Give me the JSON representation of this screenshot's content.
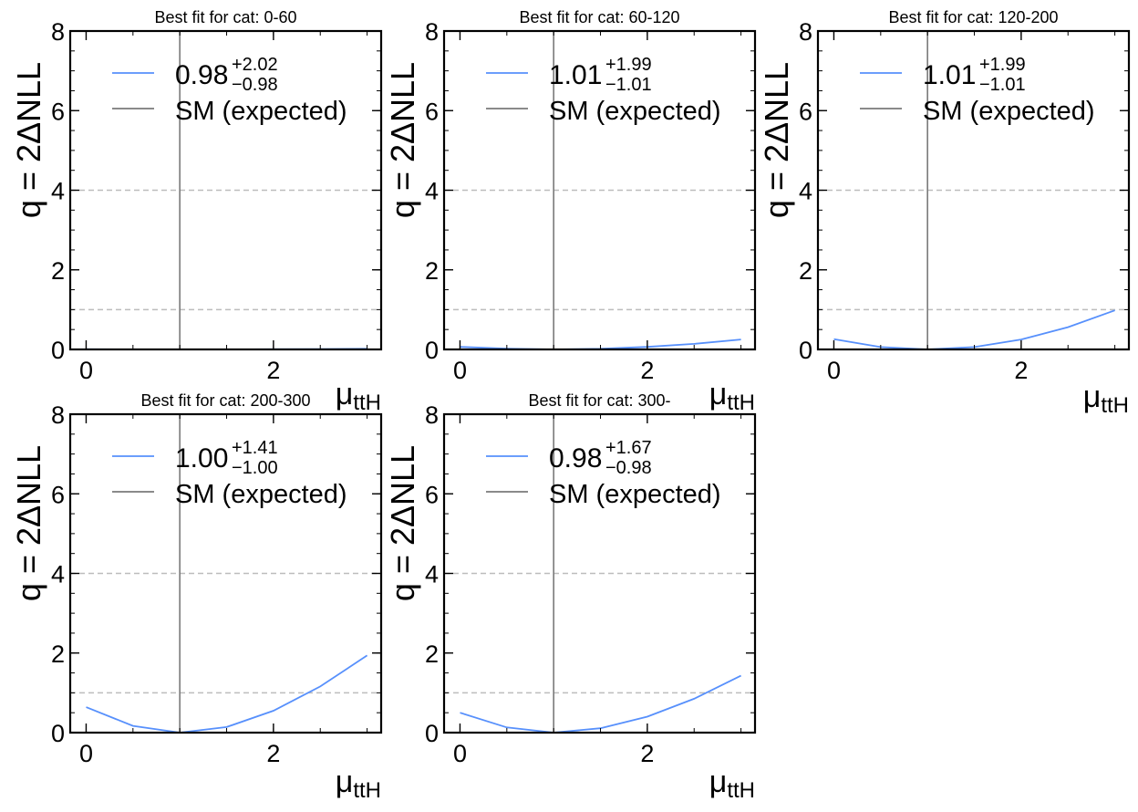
{
  "figure": {
    "ylabel": "q = 2ΔNLL",
    "xlabel_main": "μ",
    "xlabel_sub": "ttH",
    "ref_label": "SM (expected)",
    "colors": {
      "curve": "#5790fc",
      "sm_line": "#7a7a7a",
      "threshold": "#bdbdbd",
      "axes": "#000000"
    }
  },
  "chart_data": [
    {
      "type": "line",
      "title": "Best fit for cat: 0-60",
      "xlim": [
        -0.17,
        3.15
      ],
      "ylim": [
        0,
        8
      ],
      "xticks": [
        0,
        2
      ],
      "yticks": [
        0,
        2,
        4,
        6,
        8
      ],
      "thresholds": [
        1,
        4
      ],
      "sm_value": 1,
      "fit": {
        "central": "0.98",
        "up": "+2.02",
        "down": "−0.98"
      },
      "series": [
        {
          "x": [
            0,
            0.5,
            1,
            1.5,
            2,
            2.5,
            3
          ],
          "y": [
            0.005,
            0.001,
            0,
            0.001,
            0.005,
            0.01,
            0.017
          ]
        }
      ]
    },
    {
      "type": "line",
      "title": "Best fit for cat: 60-120",
      "xlim": [
        -0.17,
        3.15
      ],
      "ylim": [
        0,
        8
      ],
      "xticks": [
        0,
        2
      ],
      "yticks": [
        0,
        2,
        4,
        6,
        8
      ],
      "thresholds": [
        1,
        4
      ],
      "sm_value": 1,
      "fit": {
        "central": "1.01",
        "up": "+1.99",
        "down": "−1.01"
      },
      "series": [
        {
          "x": [
            0,
            0.5,
            1,
            1.5,
            2,
            2.5,
            3
          ],
          "y": [
            0.065,
            0.02,
            0,
            0.015,
            0.065,
            0.14,
            0.25
          ]
        }
      ]
    },
    {
      "type": "line",
      "title": "Best fit for cat: 120-200",
      "xlim": [
        -0.17,
        3.15
      ],
      "ylim": [
        0,
        8
      ],
      "xticks": [
        0,
        2
      ],
      "yticks": [
        0,
        2,
        4,
        6,
        8
      ],
      "thresholds": [
        1,
        4
      ],
      "sm_value": 1,
      "fit": {
        "central": "1.01",
        "up": "+1.99",
        "down": "−1.01"
      },
      "series": [
        {
          "x": [
            0,
            0.5,
            1,
            1.5,
            2,
            2.5,
            3
          ],
          "y": [
            0.26,
            0.06,
            0,
            0.06,
            0.25,
            0.56,
            0.98
          ]
        }
      ]
    },
    {
      "type": "line",
      "title": "Best fit for cat: 200-300",
      "xlim": [
        -0.17,
        3.15
      ],
      "ylim": [
        0,
        8
      ],
      "xticks": [
        0,
        2
      ],
      "yticks": [
        0,
        2,
        4,
        6,
        8
      ],
      "thresholds": [
        1,
        4
      ],
      "sm_value": 1,
      "fit": {
        "central": "1.00",
        "up": "+1.41",
        "down": "−1.00"
      },
      "series": [
        {
          "x": [
            0,
            0.5,
            1,
            1.5,
            2,
            2.5,
            3
          ],
          "y": [
            0.64,
            0.17,
            0,
            0.14,
            0.55,
            1.16,
            1.94
          ]
        }
      ]
    },
    {
      "type": "line",
      "title": "Best fit for cat: 300-",
      "xlim": [
        -0.17,
        3.15
      ],
      "ylim": [
        0,
        8
      ],
      "xticks": [
        0,
        2
      ],
      "yticks": [
        0,
        2,
        4,
        6,
        8
      ],
      "thresholds": [
        1,
        4
      ],
      "sm_value": 1,
      "fit": {
        "central": "0.98",
        "up": "+1.67",
        "down": "−0.98"
      },
      "series": [
        {
          "x": [
            0,
            0.5,
            1,
            1.5,
            2,
            2.5,
            3
          ],
          "y": [
            0.5,
            0.13,
            0,
            0.11,
            0.4,
            0.85,
            1.43
          ]
        }
      ]
    }
  ]
}
